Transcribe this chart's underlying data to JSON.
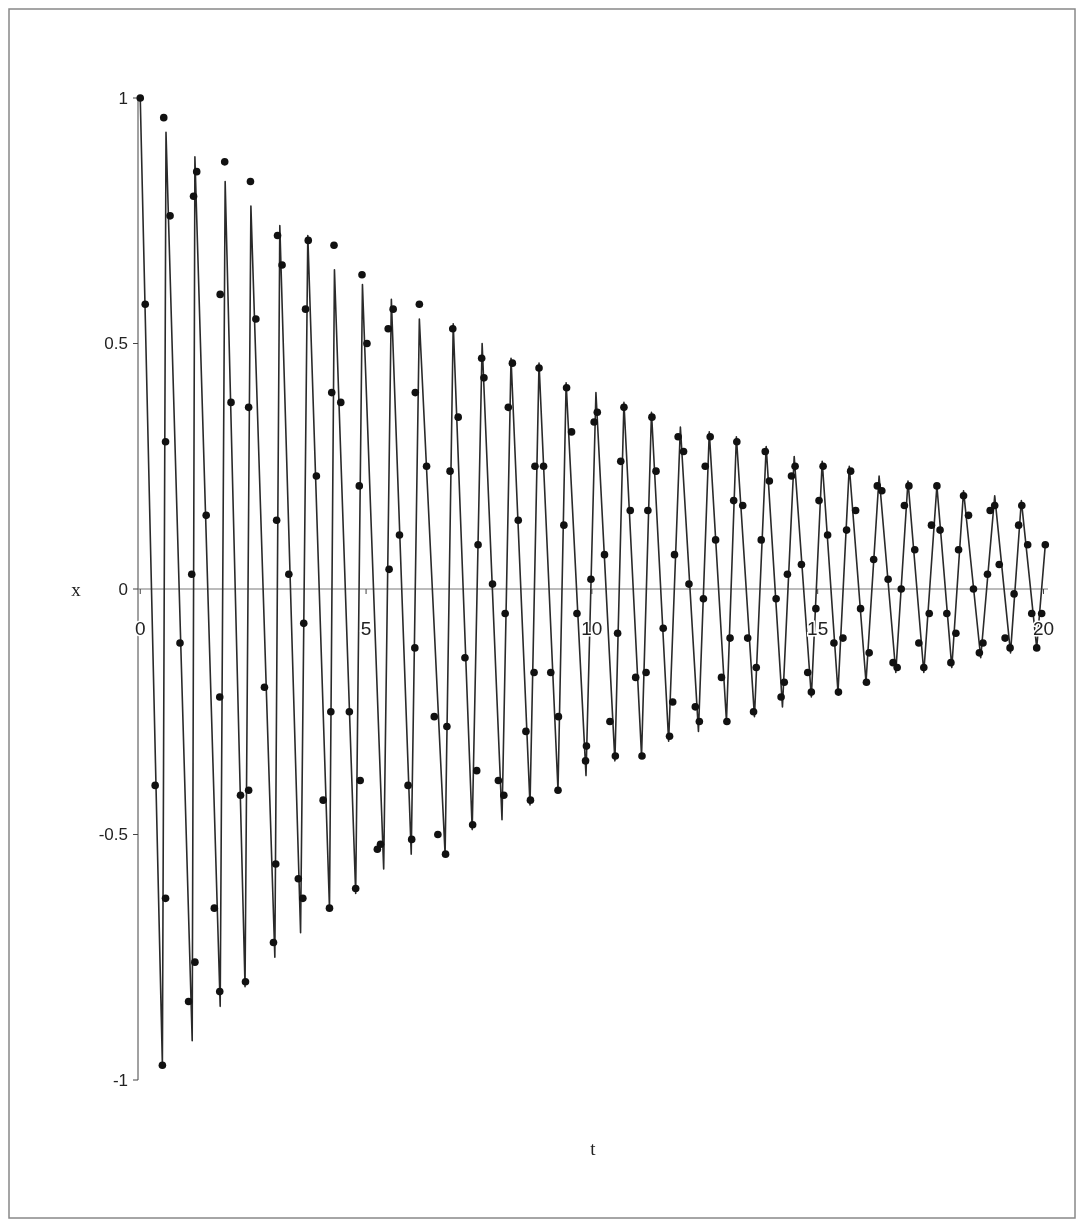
{
  "chart_data": {
    "type": "line",
    "xlabel": "t",
    "ylabel": "x",
    "xlim": [
      -0.05,
      20.1
    ],
    "ylim": [
      -1,
      1
    ],
    "xticks": [
      0,
      5,
      10,
      15,
      20
    ],
    "yticks": [
      -1,
      -0.5,
      0,
      0.5,
      1
    ],
    "grid": false,
    "series": [
      {
        "color": "#2a2a2a",
        "marker": "none",
        "line_style": "solid",
        "x": [
          0,
          0.49,
          0.57,
          1.15,
          1.21,
          1.77,
          1.88,
          2.32,
          2.45,
          2.98,
          3.09,
          3.55,
          3.71,
          4.19,
          4.3,
          4.77,
          4.92,
          5.39,
          5.56,
          6.0,
          6.18,
          6.75,
          6.93,
          7.35,
          7.57,
          8.01,
          8.21,
          8.63,
          8.83,
          9.25,
          9.43,
          9.87,
          10.09,
          10.51,
          10.71,
          11.1,
          11.32,
          11.7,
          11.96,
          12.36,
          12.6,
          12.98,
          13.2,
          13.6,
          13.86,
          14.22,
          14.48,
          14.86,
          15.1,
          15.45,
          15.7,
          16.07,
          16.36,
          16.73,
          17.0,
          17.35,
          17.64,
          17.97,
          18.23,
          18.61,
          18.92,
          19.27,
          19.51,
          19.85,
          20.04
        ],
        "values": [
          1.0,
          -0.97,
          0.93,
          -0.92,
          0.88,
          -0.85,
          0.83,
          -0.81,
          0.78,
          -0.75,
          0.74,
          -0.7,
          0.72,
          -0.65,
          0.65,
          -0.62,
          0.62,
          -0.57,
          0.59,
          -0.54,
          0.55,
          -0.54,
          0.54,
          -0.49,
          0.5,
          -0.47,
          0.47,
          -0.44,
          0.46,
          -0.41,
          0.42,
          -0.38,
          0.4,
          -0.35,
          0.38,
          -0.34,
          0.36,
          -0.31,
          0.33,
          -0.29,
          0.32,
          -0.27,
          0.31,
          -0.26,
          0.29,
          -0.24,
          0.27,
          -0.22,
          0.26,
          -0.21,
          0.25,
          -0.19,
          0.23,
          -0.17,
          0.22,
          -0.17,
          0.21,
          -0.16,
          0.2,
          -0.14,
          0.19,
          -0.13,
          0.18,
          -0.12,
          0.09
        ]
      },
      {
        "type": "scatter",
        "color": "#111111",
        "marker": "circle",
        "x": [
          0,
          0.52,
          0.11,
          0.66,
          0.56,
          0.33,
          0.56,
          0.49,
          0.88,
          1.14,
          1.21,
          1.07,
          1.18,
          1.25,
          1.46,
          1.76,
          1.64,
          1.76,
          1.77,
          1.87,
          2.01,
          2.22,
          2.33,
          2.4,
          2.4,
          2.44,
          2.56,
          2.75,
          3.0,
          2.95,
          3.02,
          3.04,
          3.14,
          3.29,
          3.5,
          3.6,
          3.62,
          3.66,
          3.72,
          3.9,
          4.05,
          4.22,
          4.19,
          4.24,
          4.29,
          4.44,
          4.63,
          4.77,
          4.85,
          4.91,
          5.02,
          4.87,
          5.25,
          5.32,
          5.49,
          5.51,
          5.6,
          5.74,
          5.93,
          6.01,
          6.08,
          6.09,
          6.18,
          6.34,
          6.51,
          6.59,
          6.92,
          6.86,
          7.04,
          6.79,
          6.76,
          7.19,
          7.48,
          7.45,
          7.36,
          7.56,
          7.61,
          7.8,
          7.93,
          8.05,
          8.08,
          8.15,
          8.24,
          8.37,
          8.54,
          8.64,
          8.72,
          8.74,
          8.83,
          8.93,
          9.09,
          9.26,
          9.25,
          9.38,
          9.44,
          9.55,
          9.67,
          9.88,
          9.86,
          9.98,
          10.05,
          10.12,
          10.28,
          10.4,
          10.52,
          10.57,
          10.64,
          10.71,
          10.85,
          10.97,
          11.11,
          11.2,
          11.24,
          11.33,
          11.42,
          11.58,
          11.72,
          11.79,
          11.83,
          11.91,
          12.03,
          12.15,
          12.29,
          12.38,
          12.47,
          12.51,
          12.62,
          12.74,
          12.87,
          12.99,
          13.06,
          13.14,
          13.21,
          13.34,
          13.45,
          13.64,
          13.58,
          13.75,
          13.84,
          13.93,
          14.08,
          14.19,
          14.26,
          14.33,
          14.42,
          14.5,
          14.64,
          14.78,
          14.86,
          14.96,
          15.03,
          15.12,
          15.22,
          15.36,
          15.46,
          15.56,
          15.64,
          15.73,
          15.84,
          15.95,
          16.08,
          16.14,
          16.24,
          16.32,
          16.42,
          16.56,
          16.67,
          16.76,
          16.85,
          16.92,
          17.02,
          17.15,
          17.24,
          17.35,
          17.47,
          17.52,
          17.64,
          17.71,
          17.86,
          17.95,
          18.06,
          18.12,
          18.23,
          18.34,
          18.45,
          18.58,
          18.66,
          18.76,
          18.82,
          18.92,
          19.02,
          19.15,
          19.26,
          19.35,
          19.45,
          19.52,
          19.65,
          19.74,
          19.85,
          19.96,
          20.04
        ],
        "values": [
          1.0,
          0.96,
          0.58,
          0.76,
          0.3,
          -0.4,
          -0.63,
          -0.97,
          -0.11,
          0.03,
          -0.76,
          -0.84,
          0.8,
          0.85,
          0.15,
          -0.22,
          -0.65,
          -0.82,
          0.6,
          0.87,
          0.38,
          -0.42,
          -0.8,
          -0.41,
          0.37,
          0.83,
          0.55,
          -0.2,
          -0.56,
          -0.72,
          0.14,
          0.72,
          0.66,
          0.03,
          -0.59,
          -0.63,
          -0.07,
          0.57,
          0.71,
          0.23,
          -0.43,
          -0.25,
          -0.65,
          0.4,
          0.7,
          0.38,
          -0.25,
          -0.61,
          0.21,
          0.64,
          0.5,
          -0.39,
          -0.53,
          -0.52,
          0.53,
          0.04,
          0.57,
          0.11,
          -0.4,
          -0.51,
          -0.12,
          0.4,
          0.58,
          0.25,
          -0.26,
          -0.5,
          0.53,
          0.24,
          0.35,
          -0.28,
          -0.54,
          -0.14,
          0.09,
          -0.37,
          -0.48,
          0.47,
          0.43,
          0.01,
          -0.39,
          -0.42,
          -0.05,
          0.37,
          0.46,
          0.14,
          -0.29,
          -0.43,
          -0.17,
          0.25,
          0.45,
          0.25,
          -0.17,
          -0.26,
          -0.41,
          0.13,
          0.41,
          0.32,
          -0.05,
          -0.32,
          -0.35,
          0.02,
          0.34,
          0.36,
          0.07,
          -0.27,
          -0.34,
          -0.09,
          0.26,
          0.37,
          0.16,
          -0.18,
          -0.34,
          -0.17,
          0.16,
          0.35,
          0.24,
          -0.08,
          -0.3,
          -0.23,
          0.07,
          0.31,
          0.28,
          0.01,
          -0.24,
          -0.27,
          -0.02,
          0.25,
          0.31,
          0.1,
          -0.18,
          -0.27,
          -0.1,
          0.18,
          0.3,
          0.17,
          -0.1,
          -0.16,
          -0.25,
          0.1,
          0.28,
          0.22,
          -0.02,
          -0.22,
          -0.19,
          0.03,
          0.23,
          0.25,
          0.05,
          -0.17,
          -0.21,
          -0.04,
          0.18,
          0.25,
          0.11,
          -0.11,
          -0.21,
          -0.1,
          0.12,
          0.24,
          0.16,
          -0.04,
          -0.19,
          -0.13,
          0.06,
          0.21,
          0.2,
          0.02,
          -0.15,
          -0.16,
          0.0,
          0.17,
          0.21,
          0.08,
          -0.11,
          -0.16,
          -0.05,
          0.13,
          0.21,
          0.12,
          -0.05,
          -0.15,
          -0.09,
          0.08,
          0.19,
          0.15,
          0.0,
          -0.13,
          -0.11,
          0.03,
          0.16,
          0.17,
          0.05,
          -0.1,
          -0.12,
          -0.01,
          0.13,
          0.17,
          0.09,
          -0.05,
          -0.12,
          -0.05,
          0.09
        ]
      }
    ]
  }
}
